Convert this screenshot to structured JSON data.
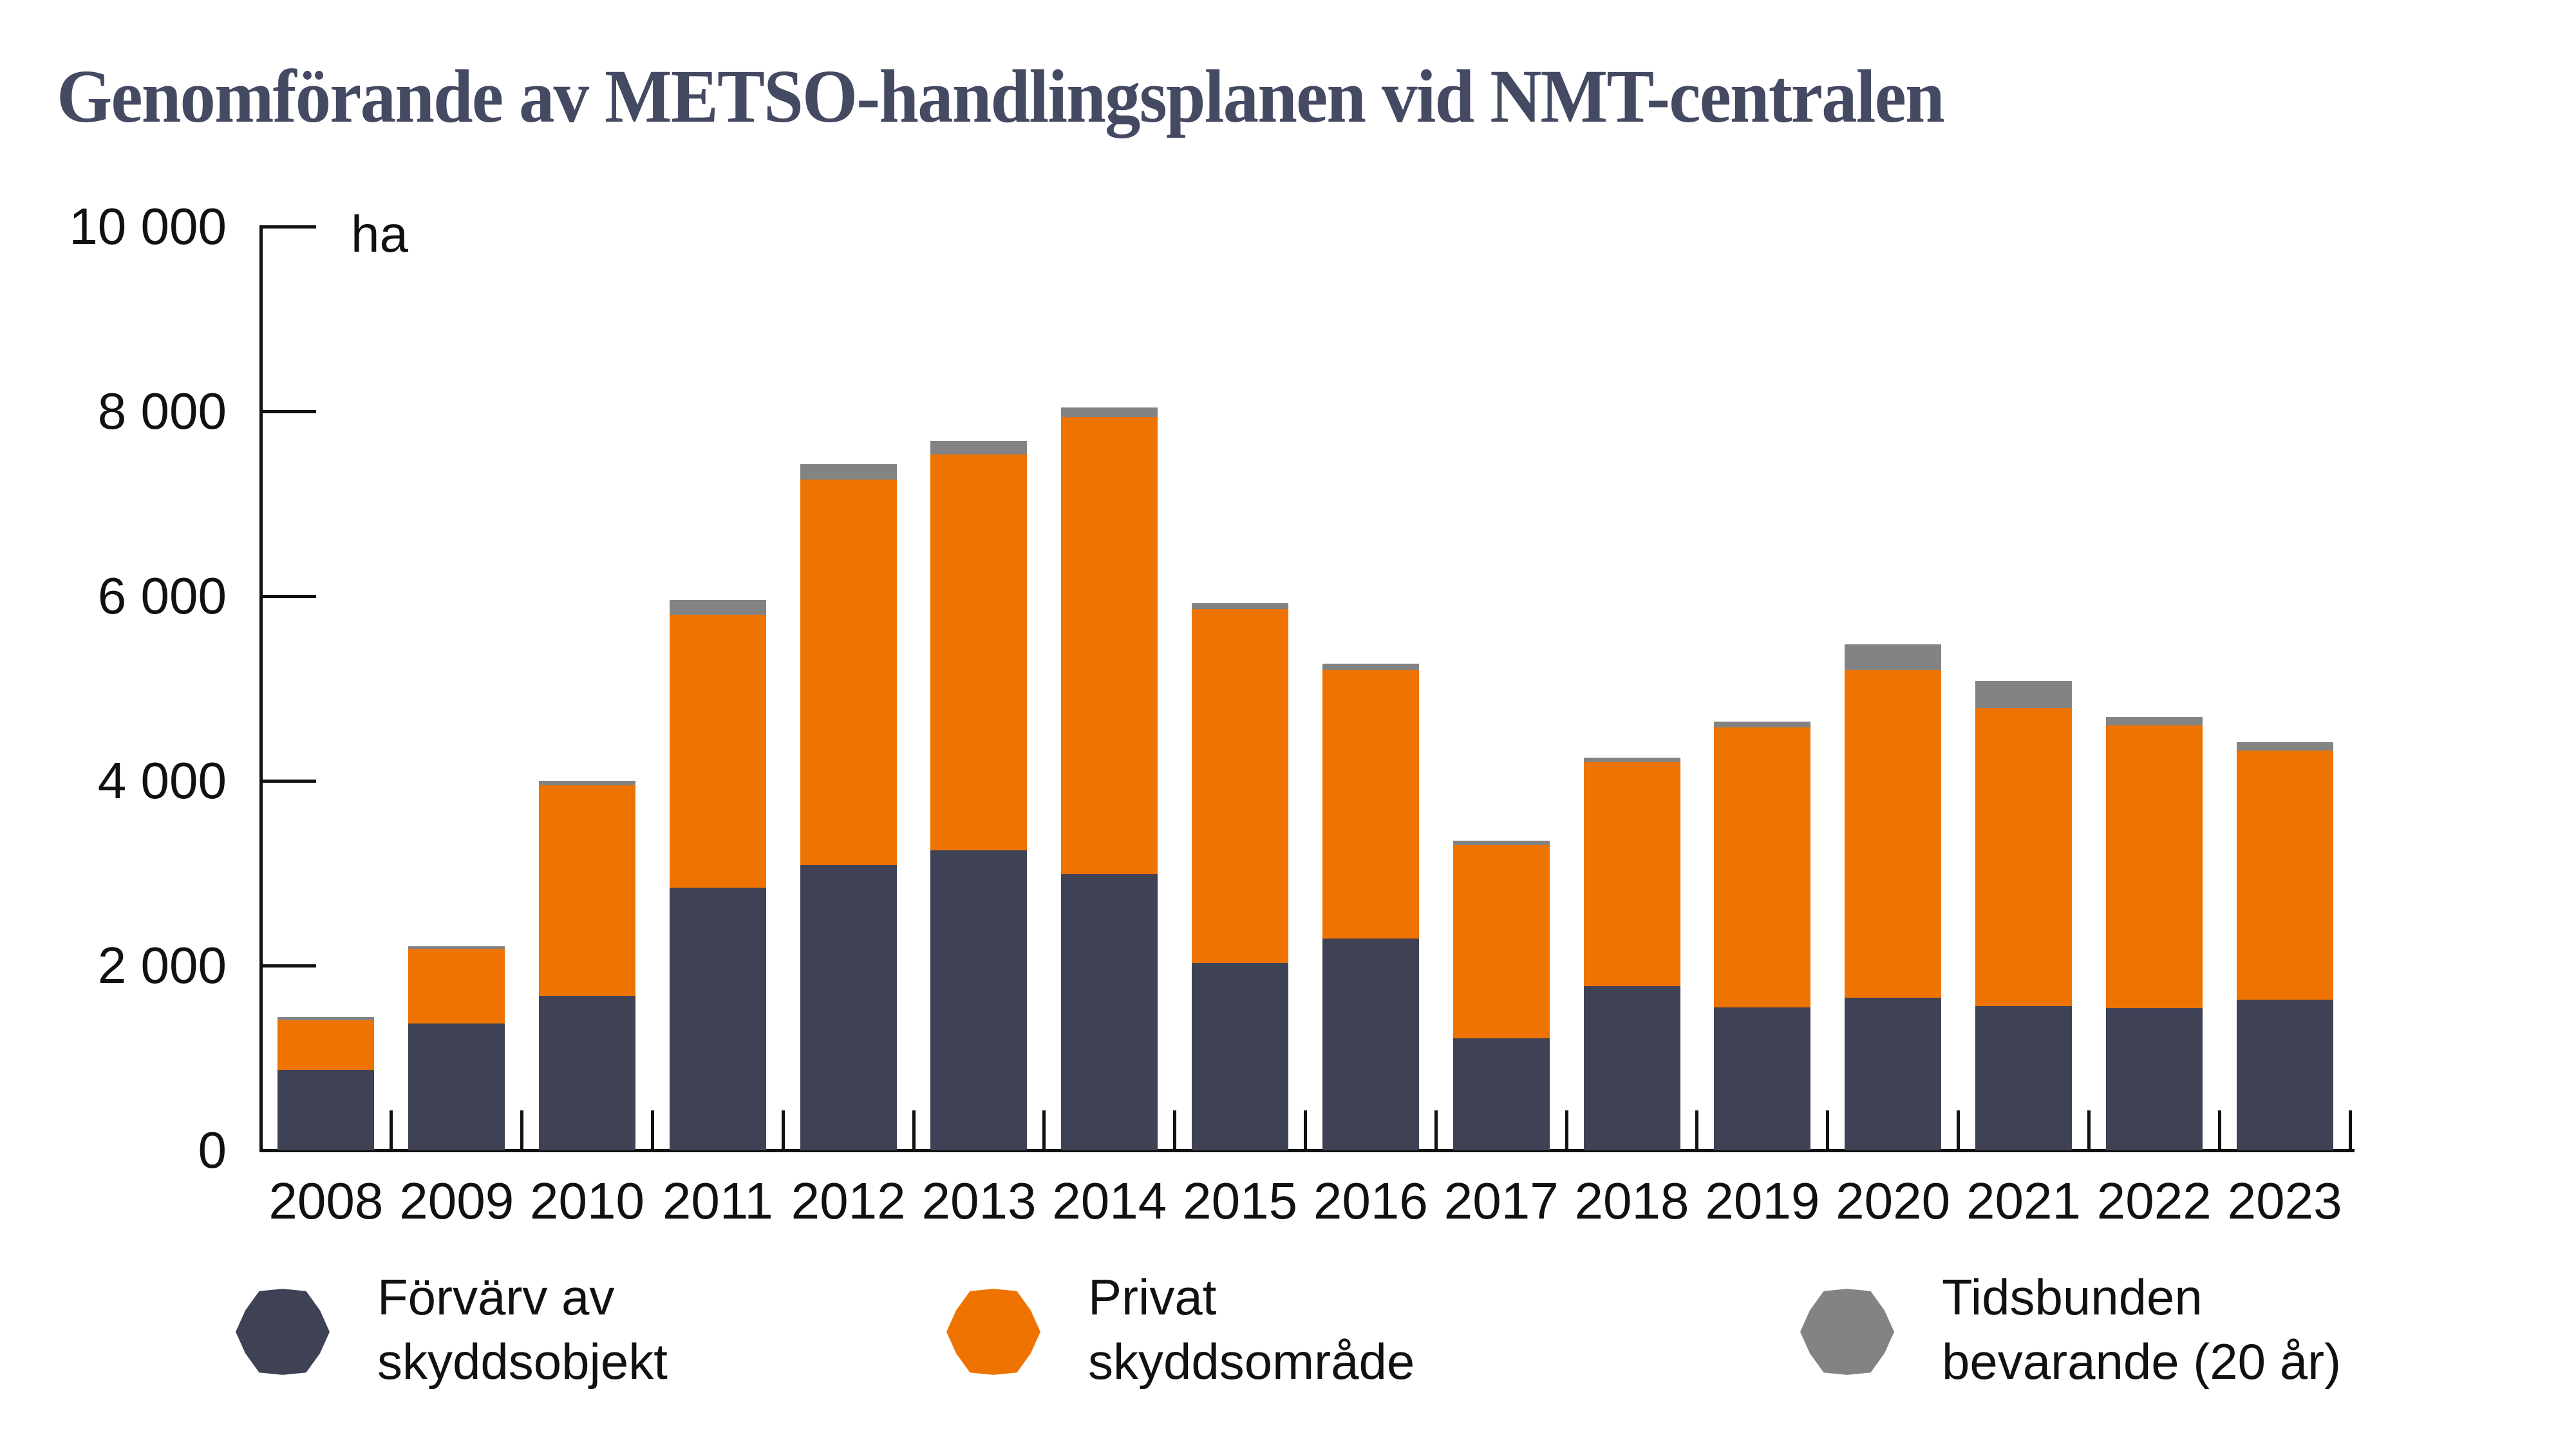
{
  "title": "Genomförande av METSO-handlingsplanen vid NMT-centralen",
  "y_axis": {
    "unit": "ha",
    "ticks": [
      {
        "label": "0",
        "value": 0
      },
      {
        "label": "2 000",
        "value": 2000
      },
      {
        "label": "4 000",
        "value": 4000
      },
      {
        "label": "6 000",
        "value": 6000
      },
      {
        "label": "8 000",
        "value": 8000
      },
      {
        "label": "10 000",
        "value": 10000
      }
    ]
  },
  "chart_data": {
    "type": "bar",
    "stacked": true,
    "title": "Genomförande av METSO-handlingsplanen vid NMT-centralen",
    "xlabel": "",
    "ylabel": "ha",
    "ylim": [
      0,
      10000
    ],
    "grid": false,
    "legend_position": "bottom",
    "categories": [
      "2008",
      "2009",
      "2010",
      "2011",
      "2012",
      "2013",
      "2014",
      "2015",
      "2016",
      "2017",
      "2018",
      "2019",
      "2020",
      "2021",
      "2022",
      "2023"
    ],
    "series": [
      {
        "name": "Förvärv av skyddsobjekt",
        "color": "#3f4155",
        "values": [
          870,
          1370,
          1670,
          2840,
          3090,
          3250,
          2990,
          2030,
          2290,
          1210,
          1780,
          1550,
          1650,
          1560,
          1540,
          1630
        ]
      },
      {
        "name": "Privat skyddsområde",
        "color": "#ee7300",
        "values": [
          540,
          810,
          2280,
          2960,
          4170,
          4280,
          4950,
          3830,
          2910,
          2090,
          2420,
          3030,
          3550,
          3230,
          3060,
          2700
        ]
      },
      {
        "name": "Tidsbunden bevarande (20 år)",
        "color": "#838383",
        "values": [
          30,
          30,
          50,
          160,
          170,
          150,
          100,
          60,
          70,
          50,
          50,
          60,
          280,
          290,
          90,
          85
        ]
      }
    ],
    "totals": [
      1440,
      2210,
      4000,
      5960,
      7430,
      7680,
      8040,
      5920,
      5270,
      3350,
      4250,
      4640,
      5480,
      5080,
      4690,
      4415
    ]
  },
  "legend": {
    "items": [
      {
        "line1": "Förvärv av",
        "line2": "skyddsobjekt"
      },
      {
        "line1": "Privat",
        "line2": "skyddsområde"
      },
      {
        "line1": "Tidsbunden",
        "line2": "bevarande (20 år)"
      }
    ]
  }
}
